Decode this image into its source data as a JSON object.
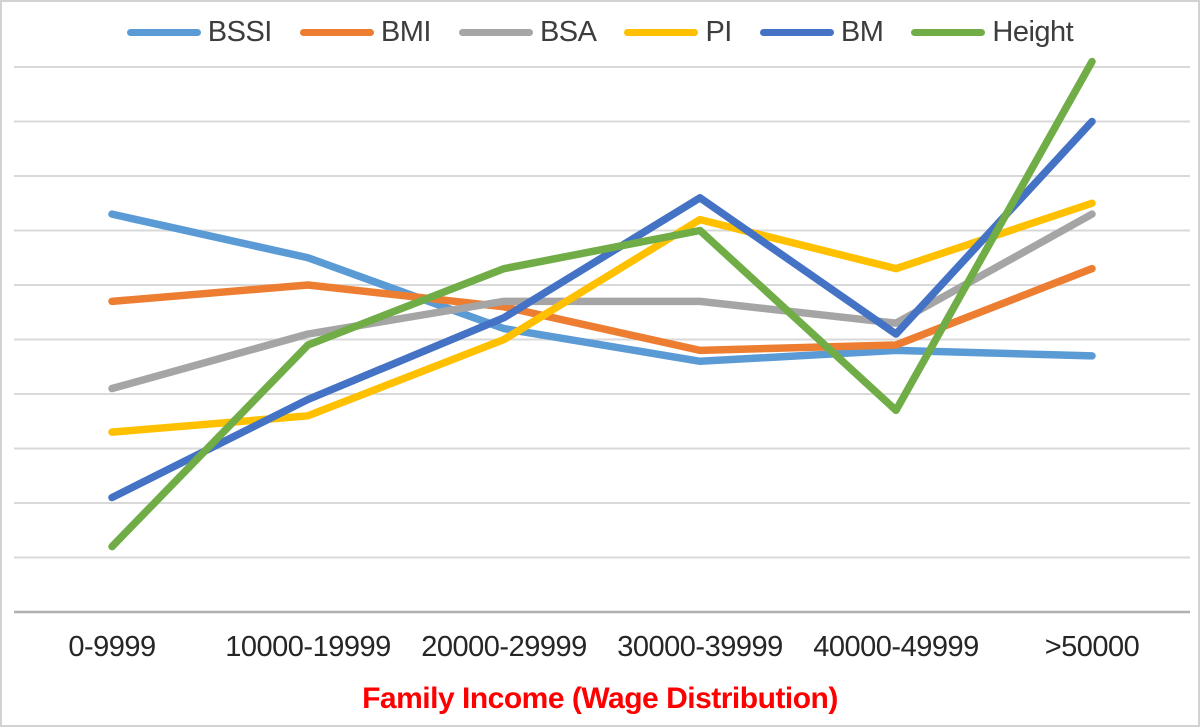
{
  "chart_data": {
    "type": "line",
    "title": "",
    "xlabel": "Family Income (Wage Distribution)",
    "ylabel": "",
    "categories": [
      "0-9999",
      "10000-19999",
      "20000-29999",
      "30000-39999",
      "40000-49999",
      ">50000"
    ],
    "series": [
      {
        "name": "BSSI",
        "color": "#5B9BD5",
        "values": [
          7.3,
          6.5,
          5.2,
          4.6,
          4.8,
          4.7
        ]
      },
      {
        "name": "BMI",
        "color": "#ED7D31",
        "values": [
          5.7,
          6.0,
          5.6,
          4.8,
          4.9,
          6.3
        ]
      },
      {
        "name": "BSA",
        "color": "#A5A5A5",
        "values": [
          4.1,
          5.1,
          5.7,
          5.7,
          5.3,
          7.3
        ]
      },
      {
        "name": "PI",
        "color": "#FFC000",
        "values": [
          3.3,
          3.6,
          5.0,
          7.2,
          6.3,
          7.5
        ]
      },
      {
        "name": "BM",
        "color": "#4472C4",
        "values": [
          2.1,
          3.9,
          5.4,
          7.6,
          5.1,
          9.0
        ]
      },
      {
        "name": "Height",
        "color": "#70AD47",
        "values": [
          1.2,
          4.9,
          6.3,
          7.0,
          3.7,
          10.1
        ]
      }
    ],
    "legend_position": "top",
    "grid": true,
    "y_axis": {
      "labels_visible": false,
      "gridline_count": 10,
      "ylim": [
        0,
        10.5
      ],
      "units": "unlabeled gridline units: bottom axis = 0, one unit per gridline"
    }
  },
  "colors": {
    "gridline": "#d9d9d9",
    "axis_line": "#b0b0b0",
    "frame_border": "#d2d2d2",
    "legend_text": "#3d3d3d",
    "tick_text": "#262626",
    "xlabel_text": "#fe0000",
    "background": "#ffffff"
  }
}
